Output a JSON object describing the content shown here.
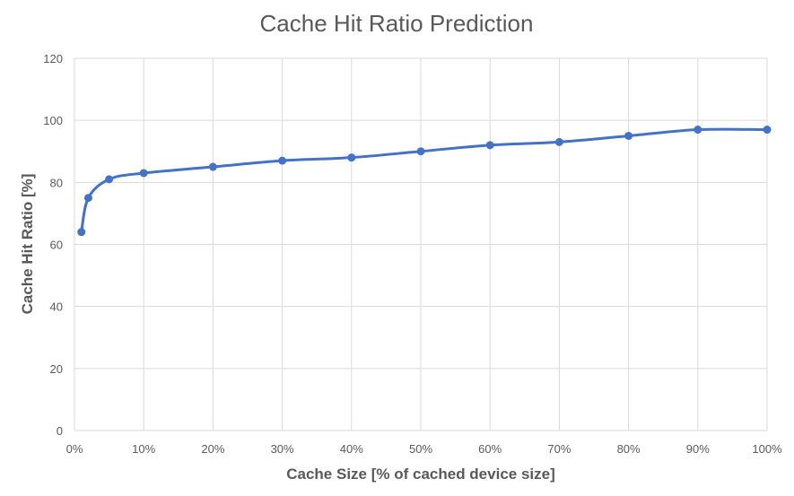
{
  "chart_data": {
    "type": "line",
    "title": "Cache Hit Ratio Prediction",
    "xlabel": "Cache Size [% of cached device size]",
    "ylabel": "Cache Hit Ratio [%]",
    "xlim": [
      0,
      100
    ],
    "ylim": [
      0,
      120
    ],
    "x_ticks": [
      0,
      10,
      20,
      30,
      40,
      50,
      60,
      70,
      80,
      90,
      100
    ],
    "x_tick_labels": [
      "0%",
      "10%",
      "20%",
      "30%",
      "40%",
      "50%",
      "60%",
      "70%",
      "80%",
      "90%",
      "100%"
    ],
    "y_ticks": [
      0,
      20,
      40,
      60,
      80,
      100,
      120
    ],
    "y_tick_labels": [
      "0",
      "20",
      "40",
      "60",
      "80",
      "100",
      "120"
    ],
    "grid": true,
    "series": [
      {
        "color": "#4472c4",
        "smooth": true,
        "markers": true,
        "x": [
          1,
          2,
          5,
          10,
          20,
          30,
          40,
          50,
          60,
          70,
          80,
          90,
          100
        ],
        "y": [
          64,
          75,
          81,
          83,
          85,
          87,
          88,
          90,
          92,
          93,
          95,
          97,
          97
        ]
      }
    ]
  }
}
